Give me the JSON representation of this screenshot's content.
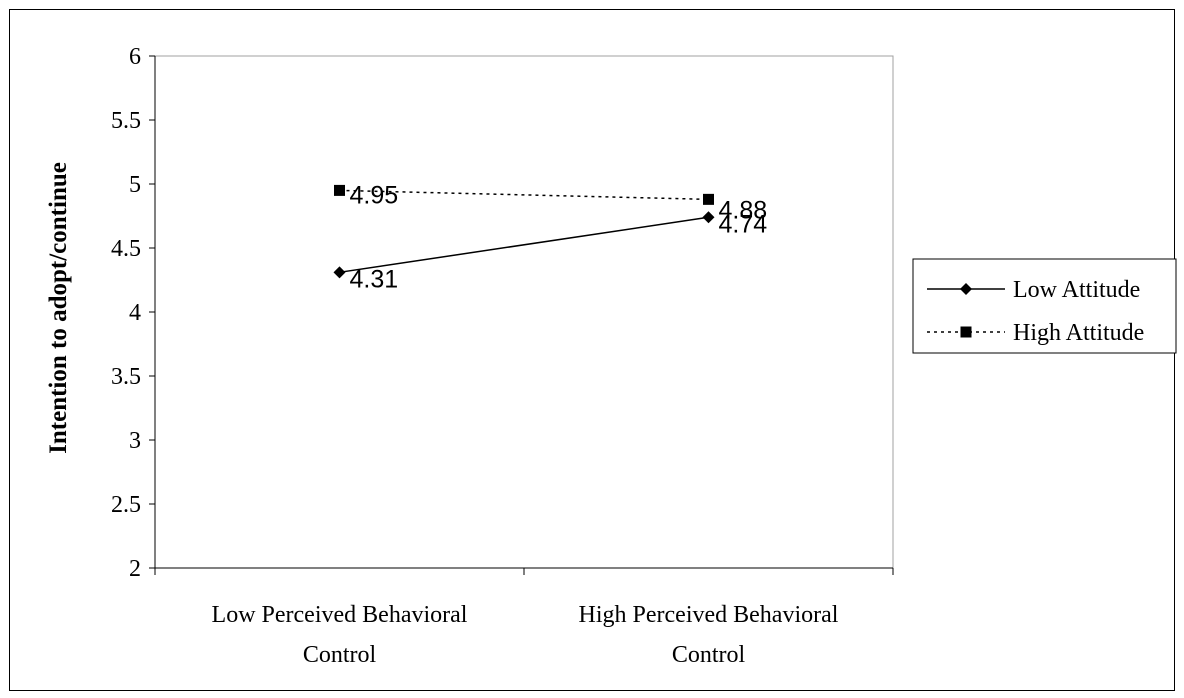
{
  "chart_data": {
    "type": "line",
    "title": "",
    "xlabel": "",
    "ylabel": "Intention to adopt/continue",
    "ylim": [
      2,
      6
    ],
    "yticks": [
      "2",
      "2.5",
      "3",
      "3.5",
      "4",
      "4.5",
      "5",
      "5.5",
      "6"
    ],
    "categories": [
      [
        "Low Perceived Behavioral",
        "Control"
      ],
      [
        "High Perceived Behavioral",
        "Control"
      ]
    ],
    "series": [
      {
        "name": "Low Attitude",
        "values": [
          4.31,
          4.74
        ],
        "labels": [
          "4.31",
          "4.74"
        ],
        "marker": "diamond",
        "line": "solid",
        "color": "#000000"
      },
      {
        "name": "High Attitude",
        "values": [
          4.95,
          4.88
        ],
        "labels": [
          "4.95",
          "4.88"
        ],
        "marker": "square",
        "line": "dotted",
        "color": "#000000"
      }
    ],
    "grid": false,
    "legend": "right",
    "plot_area_color": "#ffffff",
    "plot_border_color": "#a0a0a0"
  }
}
